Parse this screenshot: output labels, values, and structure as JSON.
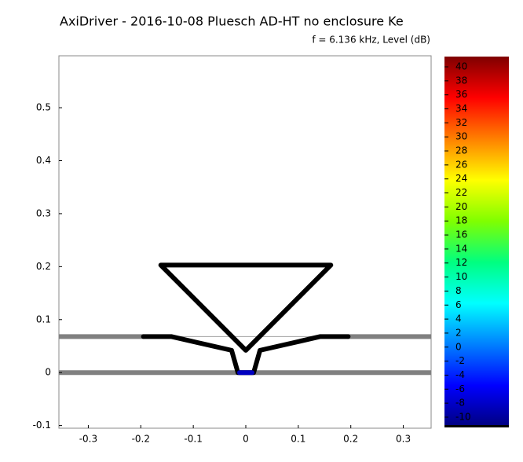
{
  "chart_data": {
    "type": "line",
    "title": "AxiDriver - 2016-10-08 Pluesch AD-HT no enclosure Ke",
    "subtitle": "f = 6.136 kHz, Level  (dB)",
    "xlim": [
      -0.356,
      0.353
    ],
    "ylim": [
      -0.105,
      0.598
    ],
    "xticks": [
      -0.3,
      -0.2,
      -0.1,
      0,
      0.1,
      0.2,
      0.3
    ],
    "yticks": [
      -0.1,
      0,
      0.1,
      0.2,
      0.3,
      0.4,
      0.5
    ],
    "series": [
      {
        "color": "#808080",
        "width": 6,
        "x": [
          -0.356,
          0.353
        ],
        "values": [
          0,
          0
        ]
      },
      {
        "color": "#808080",
        "width": 6,
        "x": [
          -0.356,
          -0.195,
          null,
          0.195,
          0.353
        ],
        "values": [
          0.068,
          0.068,
          null,
          0.068,
          0.068
        ]
      },
      {
        "color": "#a0a0a0",
        "width": 1,
        "x": [
          -0.195,
          0.195
        ],
        "values": [
          0.068,
          0.068
        ]
      },
      {
        "color": "#000000",
        "width": 6,
        "x": [
          -0.195,
          -0.142,
          -0.027,
          -0.015,
          0.015,
          0.027,
          0.142,
          0.195
        ],
        "values": [
          0.068,
          0.068,
          0.042,
          0,
          0,
          0.042,
          0.068,
          0.068
        ]
      },
      {
        "color": "#000000",
        "width": 6,
        "x": [
          -0.162,
          0.162,
          0,
          -0.162
        ],
        "values": [
          0.203,
          0.203,
          0.042,
          0.203
        ]
      },
      {
        "color": "#0000c0",
        "width": 6,
        "x": [
          -0.012,
          0.012
        ],
        "values": [
          0,
          0
        ]
      }
    ],
    "colorbar": {
      "clim": [
        -11.35,
        41.46
      ],
      "colormap": [
        "#00007f",
        "#0000ff",
        "#0080ff",
        "#00ffff",
        "#00ff80",
        "#80ff00",
        "#ffff00",
        "#ff8000",
        "#ff0000",
        "#7f0000"
      ],
      "ticks": [
        -10,
        -8,
        -6,
        -4,
        -2,
        0,
        2,
        4,
        6,
        8,
        10,
        12,
        14,
        16,
        18,
        20,
        22,
        24,
        26,
        28,
        30,
        32,
        34,
        36,
        38,
        40
      ]
    }
  }
}
